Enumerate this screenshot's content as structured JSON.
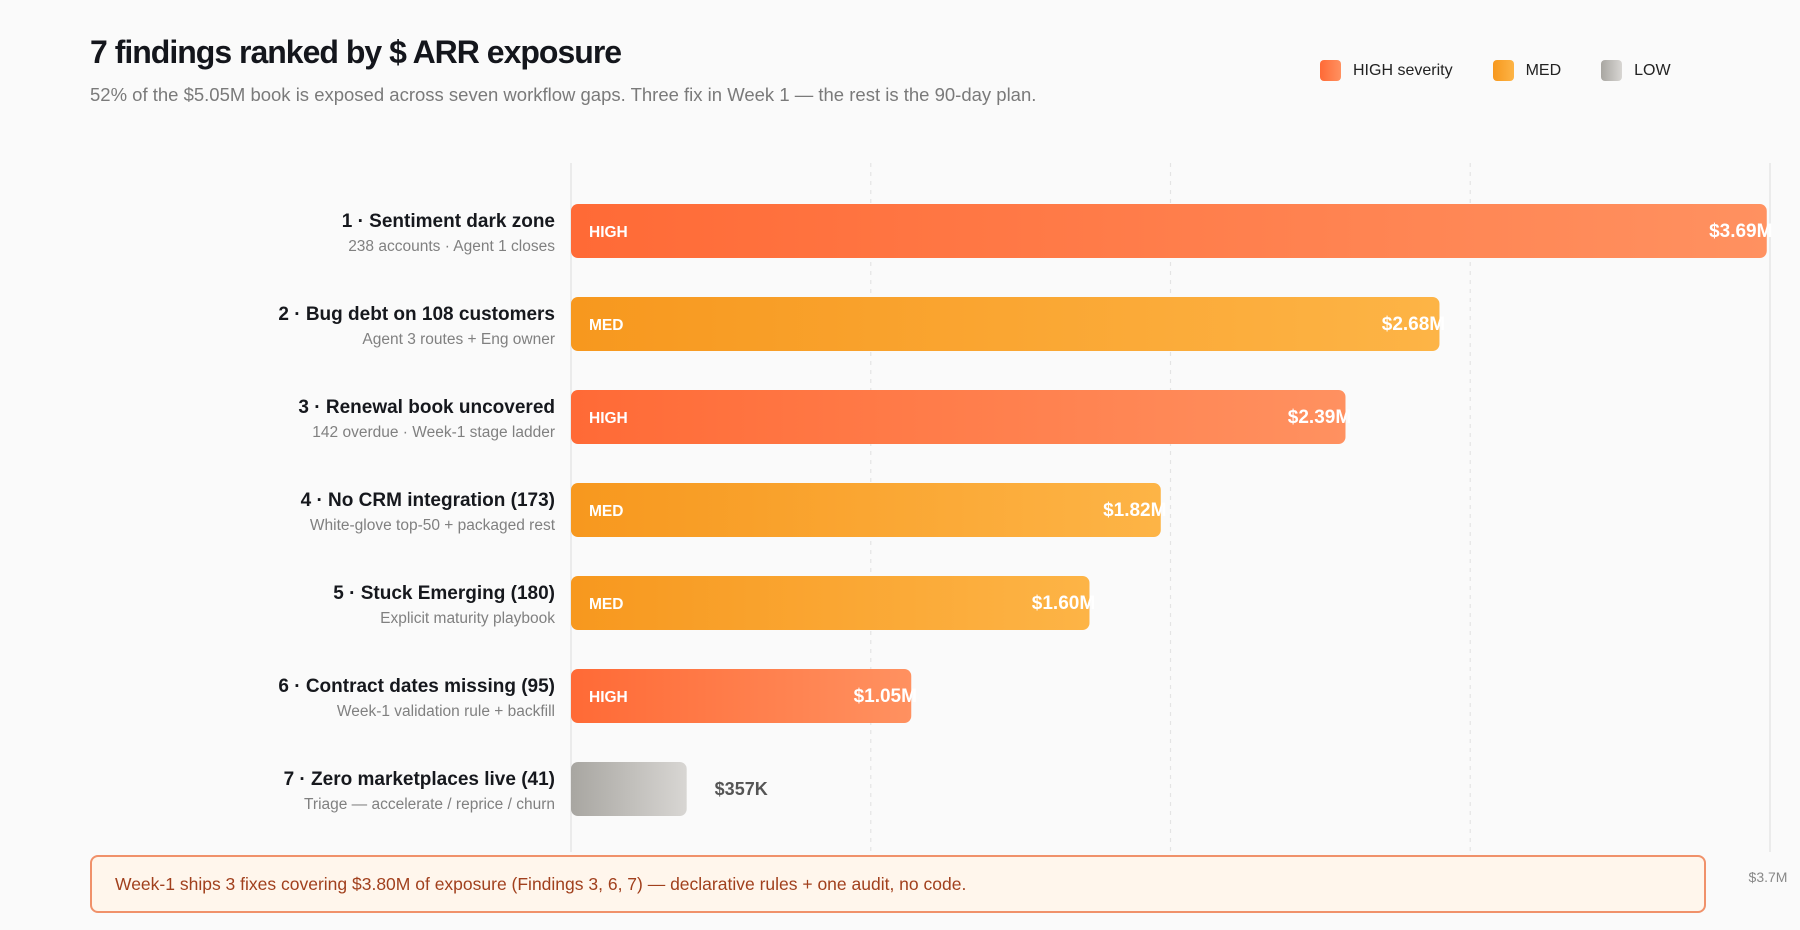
{
  "header": {
    "title": "7 findings ranked by $ ARR exposure",
    "subtitle": "52% of the $5.05M book is exposed across seven workflow gaps. Three fix in Week 1 — the rest is the 90-day plan."
  },
  "legend": [
    {
      "label": "HIGH severity",
      "key": "HIGH"
    },
    {
      "label": "MED",
      "key": "MED"
    },
    {
      "label": "LOW",
      "key": "LOW"
    }
  ],
  "colors": {
    "HIGH": [
      "#ff6a36",
      "#ff9160"
    ],
    "MED": [
      "#f7981e",
      "#fdb446"
    ],
    "LOW": [
      "#a8a6a1",
      "#d8d6d3"
    ]
  },
  "chart_data": {
    "type": "bar",
    "orientation": "horizontal",
    "title": "7 findings ranked by $ ARR exposure",
    "xlim": [
      0,
      3.7
    ],
    "unit": "$M",
    "x_tick_labels": [
      "$3.7M"
    ],
    "grid": true,
    "categories": [
      "1 · Sentiment dark zone",
      "2 · Bug debt on 108 customers",
      "3 · Renewal book uncovered",
      "4 · No CRM integration (173)",
      "5 · Stuck Emerging (180)",
      "6 · Contract dates missing (95)",
      "7 · Zero marketplaces live (41)"
    ],
    "subtitles": [
      "238 accounts · Agent 1 closes",
      "Agent 3 routes + Eng owner",
      "142 overdue · Week-1 stage ladder",
      "White-glove top-50 + packaged rest",
      "Explicit maturity playbook",
      "Week-1 validation rule + backfill",
      "Triage — accelerate / reprice / churn"
    ],
    "values": [
      3.69,
      2.68,
      2.39,
      1.82,
      1.6,
      1.05,
      0.357
    ],
    "value_labels": [
      "$3.69M",
      "$2.68M",
      "$2.39M",
      "$1.82M",
      "$1.60M",
      "$1.05M",
      "$357K"
    ],
    "severity": [
      "HIGH",
      "MED",
      "HIGH",
      "MED",
      "MED",
      "HIGH",
      "LOW"
    ],
    "legend_placement": "top-right"
  },
  "callout": {
    "text": "Week-1 ships 3 fixes covering $3.80M of exposure (Findings 3, 6, 7) — declarative rules + one audit, no code."
  }
}
